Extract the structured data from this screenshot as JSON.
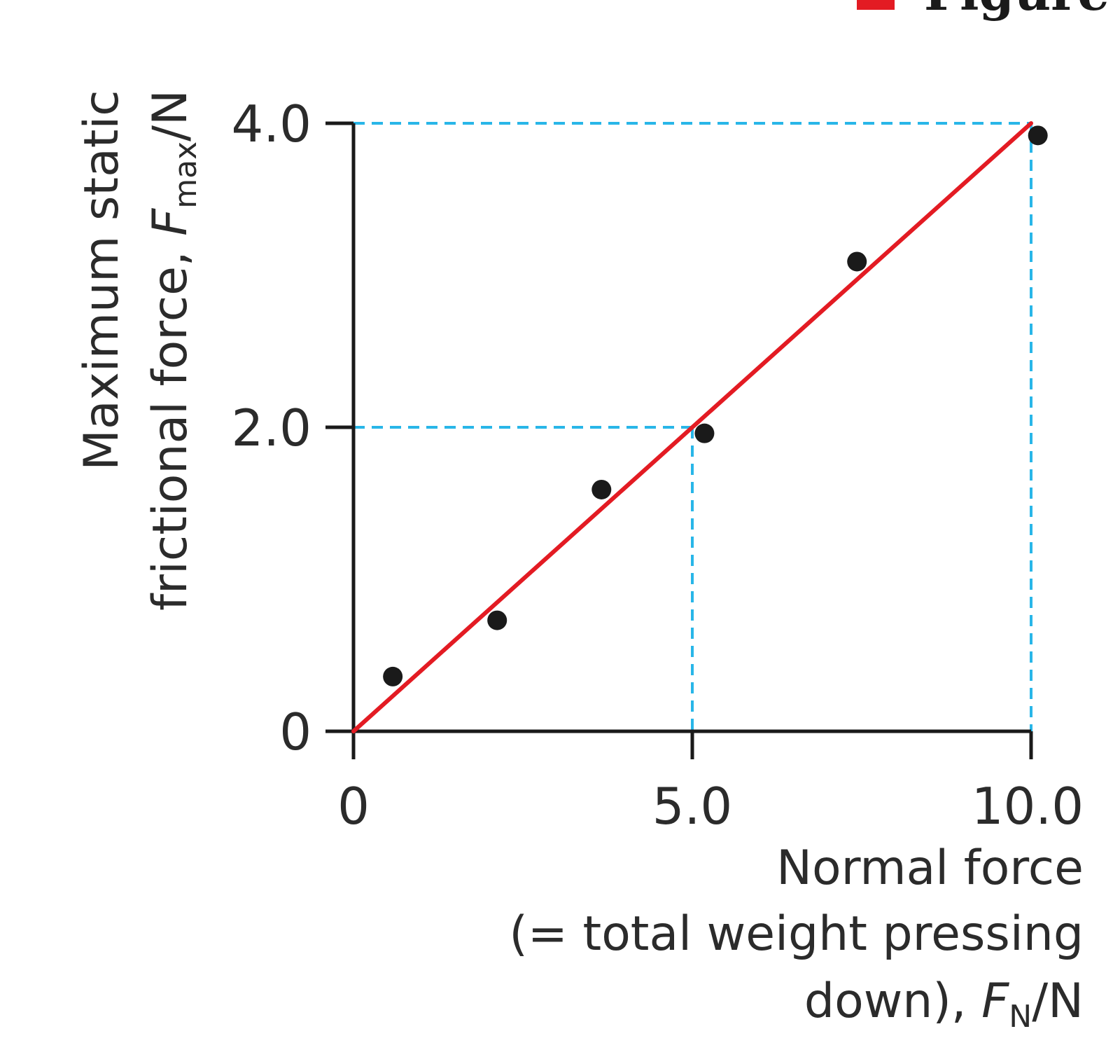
{
  "figure_caption": "Figure A",
  "colors": {
    "fit_line": "#e31b23",
    "guide_lines": "#29b6e8",
    "points": "#1a1a1a",
    "axes": "#1a1a1a",
    "caption_marker": "#e31b23"
  },
  "chart_data": {
    "type": "scatter",
    "title": "",
    "xlabel": {
      "line1": "Normal force",
      "line2": "(= total weight pressing",
      "line3_prefix": "down), ",
      "symbol": "F",
      "subscript": "N",
      "unit": "/N"
    },
    "ylabel": {
      "line1": "Maximum static",
      "line2_prefix": "frictional force, ",
      "symbol": "F",
      "subscript": "max",
      "unit": "/N"
    },
    "xlim": [
      0,
      10.0
    ],
    "ylim": [
      0,
      4.0
    ],
    "x_ticks": [
      {
        "value": 0,
        "label": "0"
      },
      {
        "value": 5.0,
        "label": "5.0"
      },
      {
        "value": 10.0,
        "label": "10.0"
      }
    ],
    "y_ticks": [
      {
        "value": 0,
        "label": "0"
      },
      {
        "value": 2.0,
        "label": "2.0"
      },
      {
        "value": 4.0,
        "label": "4.0"
      }
    ],
    "points": [
      {
        "x": 0.58,
        "y": 0.36
      },
      {
        "x": 2.12,
        "y": 0.73
      },
      {
        "x": 3.66,
        "y": 1.59
      },
      {
        "x": 5.18,
        "y": 1.96
      },
      {
        "x": 7.43,
        "y": 3.09
      },
      {
        "x": 10.1,
        "y": 3.92
      }
    ],
    "fit_line": {
      "x1": 0,
      "y1": 0,
      "x2": 10.0,
      "y2": 4.0
    },
    "guide_lines": [
      {
        "x": 5.0,
        "y": 2.0
      },
      {
        "x": 10.0,
        "y": 4.0
      }
    ],
    "grid": false,
    "legend": "none"
  }
}
